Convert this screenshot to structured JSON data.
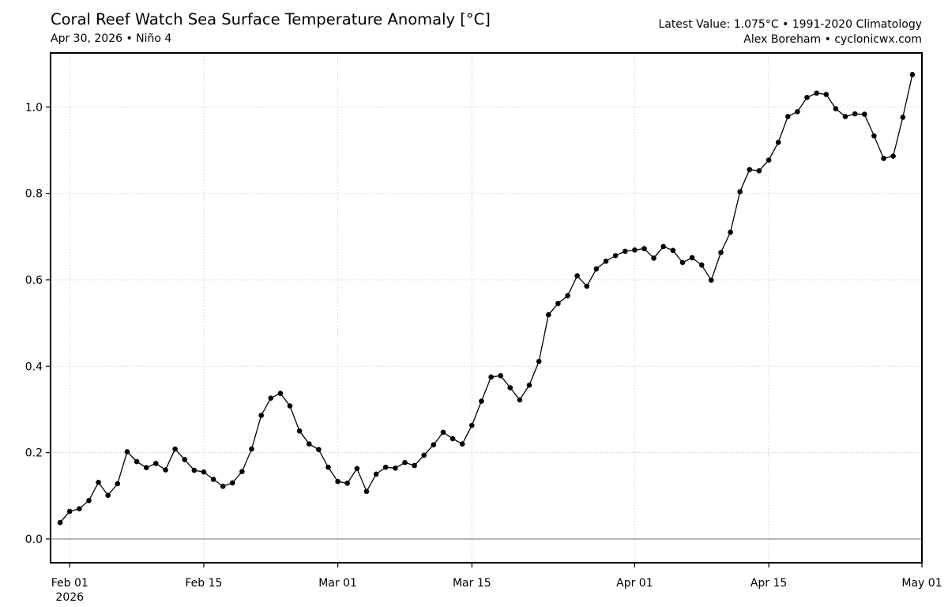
{
  "header": {
    "title": "Coral Reef Watch Sea Surface Temperature Anomaly [°C]",
    "subtitle": "Apr 30, 2026 • Niño 4",
    "right_line1": "Latest Value: 1.075°C • 1991-2020 Climatology",
    "right_line2": "Alex Boreham • cyclonicwx.com"
  },
  "chart_data": {
    "type": "line",
    "title": "Coral Reef Watch Sea Surface Temperature Anomaly [°C]",
    "subtitle": "Apr 30, 2026 • Niño 4",
    "xlabel": "",
    "ylabel": "",
    "x_start": "2026-01-31",
    "x_end": "2026-04-30",
    "xlim": [
      "2026-01-30",
      "2026-05-01"
    ],
    "ylim": [
      -0.055,
      1.125
    ],
    "yticks": [
      0.0,
      0.2,
      0.4,
      0.6,
      0.8,
      1.0
    ],
    "ytick_labels": [
      "0.0",
      "0.2",
      "0.4",
      "0.6",
      "0.8",
      "1.0"
    ],
    "xticks": [
      "2026-02-01",
      "2026-02-15",
      "2026-03-01",
      "2026-03-15",
      "2026-04-01",
      "2026-04-15",
      "2026-05-01"
    ],
    "xtick_labels": [
      "Feb 01\n2026",
      "Feb 15",
      "Mar 01",
      "Mar 15",
      "Apr 01",
      "Apr 15",
      "May 01"
    ],
    "grid": true,
    "reference_line": 0.0,
    "values": [
      0.038,
      0.064,
      0.07,
      0.089,
      0.131,
      0.101,
      0.128,
      0.202,
      0.179,
      0.165,
      0.175,
      0.16,
      0.208,
      0.184,
      0.159,
      0.155,
      0.138,
      0.122,
      0.13,
      0.156,
      0.208,
      0.286,
      0.326,
      0.337,
      0.308,
      0.25,
      0.22,
      0.207,
      0.166,
      0.133,
      0.129,
      0.163,
      0.11,
      0.15,
      0.166,
      0.164,
      0.177,
      0.17,
      0.194,
      0.218,
      0.247,
      0.232,
      0.22,
      0.263,
      0.319,
      0.375,
      0.378,
      0.35,
      0.322,
      0.356,
      0.411,
      0.519,
      0.545,
      0.563,
      0.609,
      0.585,
      0.625,
      0.643,
      0.656,
      0.666,
      0.669,
      0.672,
      0.65,
      0.677,
      0.668,
      0.64,
      0.651,
      0.634,
      0.599,
      0.663,
      0.71,
      0.804,
      0.855,
      0.852,
      0.877,
      0.918,
      0.978,
      0.989,
      1.022,
      1.032,
      1.029,
      0.996,
      0.978,
      0.984,
      0.983,
      0.933,
      0.881,
      0.886,
      0.976,
      1.075
    ]
  }
}
